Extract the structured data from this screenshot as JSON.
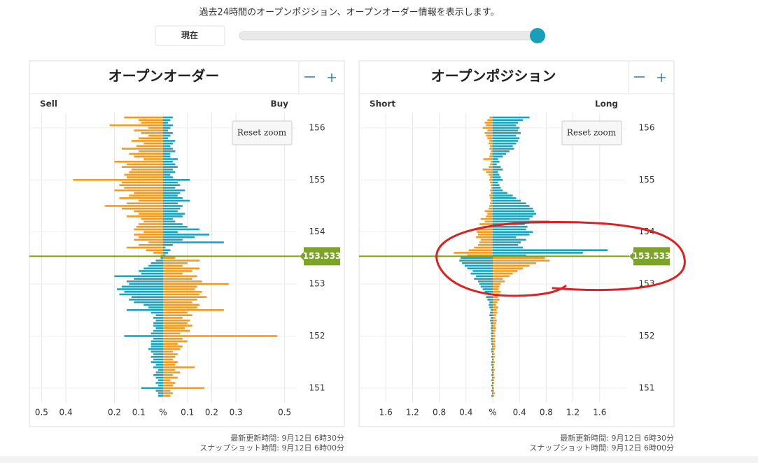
{
  "header": {
    "description": "過去24時間のオープンポジション、オープンオーダー情報を表示します。",
    "slider_button": "現在"
  },
  "chart_data": [
    {
      "type": "bar",
      "orientation": "horizontal",
      "title": "オープンオーダー",
      "grid": true,
      "x": [
        150.85,
        150.9,
        150.95,
        151,
        151.05,
        151.1,
        151.15,
        151.2,
        151.25,
        151.3,
        151.35,
        151.4,
        151.45,
        151.5,
        151.55,
        151.6,
        151.65,
        151.7,
        151.75,
        151.8,
        151.85,
        151.9,
        151.95,
        152,
        152.05,
        152.1,
        152.15,
        152.2,
        152.25,
        152.3,
        152.35,
        152.4,
        152.45,
        152.5,
        152.55,
        152.6,
        152.65,
        152.7,
        152.75,
        152.8,
        152.85,
        152.9,
        152.95,
        153,
        153.05,
        153.1,
        153.15,
        153.2,
        153.25,
        153.3,
        153.35,
        153.4,
        153.45,
        153.5,
        153.55,
        153.6,
        153.65,
        153.7,
        153.75,
        153.8,
        153.85,
        153.9,
        153.95,
        154,
        154.05,
        154.1,
        154.15,
        154.2,
        154.25,
        154.3,
        154.35,
        154.4,
        154.45,
        154.5,
        154.55,
        154.6,
        154.65,
        154.7,
        154.75,
        154.8,
        154.85,
        154.9,
        154.95,
        155,
        155.05,
        155.1,
        155.15,
        155.2,
        155.25,
        155.3,
        155.35,
        155.4,
        155.45,
        155.5,
        155.55,
        155.6,
        155.65,
        155.7,
        155.75,
        155.8,
        155.85,
        155.9,
        155.95,
        156,
        156.05,
        156.1,
        156.15,
        156.2
      ],
      "series": [
        {
          "name": "Sell",
          "color_above": "#f39a1e",
          "color_below": "#1ba3bd",
          "values": [
            -0.02,
            -0.02,
            -0.03,
            -0.09,
            -0.02,
            -0.03,
            -0.02,
            -0.03,
            -0.04,
            -0.03,
            -0.02,
            -0.04,
            -0.03,
            -0.05,
            -0.04,
            -0.05,
            -0.04,
            -0.05,
            -0.06,
            -0.05,
            -0.05,
            -0.05,
            -0.04,
            -0.16,
            -0.05,
            -0.04,
            -0.03,
            -0.04,
            -0.04,
            -0.03,
            -0.04,
            -0.03,
            -0.05,
            -0.15,
            -0.06,
            -0.08,
            -0.12,
            -0.14,
            -0.13,
            -0.18,
            -0.16,
            -0.19,
            -0.17,
            -0.14,
            -0.15,
            -0.12,
            -0.2,
            -0.09,
            -0.1,
            -0.08,
            -0.06,
            -0.05,
            -0.03,
            -0.01,
            -0.01,
            -0.04,
            -0.07,
            -0.15,
            -0.1,
            -0.06,
            -0.12,
            -0.1,
            -0.12,
            -0.08,
            -0.12,
            -0.11,
            -0.1,
            -0.08,
            -0.09,
            -0.15,
            -0.1,
            -0.12,
            -0.17,
            -0.24,
            -0.15,
            -0.1,
            -0.18,
            -0.14,
            -0.12,
            -0.2,
            -0.16,
            -0.18,
            -0.17,
            -0.37,
            -0.15,
            -0.16,
            -0.14,
            -0.13,
            -0.17,
            -0.15,
            -0.2,
            -0.08,
            -0.12,
            -0.14,
            -0.1,
            -0.17,
            -0.11,
            -0.08,
            -0.13,
            -0.1,
            -0.06,
            -0.09,
            -0.12,
            -0.06,
            -0.22,
            -0.09,
            -0.1,
            -0.16
          ]
        },
        {
          "name": "Buy",
          "color_above": "#1ba3bd",
          "color_below": "#f39a1e",
          "values": [
            0.03,
            0.04,
            0.03,
            0.17,
            0.04,
            0.05,
            0.03,
            0.06,
            0.04,
            0.07,
            0.05,
            0.13,
            0.05,
            0.06,
            0.04,
            0.05,
            0.06,
            0.04,
            0.07,
            0.08,
            0.06,
            0.1,
            0.08,
            0.47,
            0.07,
            0.11,
            0.09,
            0.12,
            0.1,
            0.11,
            0.08,
            0.12,
            0.1,
            0.25,
            0.14,
            0.15,
            0.12,
            0.14,
            0.18,
            0.15,
            0.16,
            0.13,
            0.14,
            0.27,
            0.16,
            0.12,
            0.14,
            0.08,
            0.12,
            0.15,
            0.08,
            0.1,
            0.15,
            0.05,
            0.01,
            0.02,
            0.03,
            0.01,
            0.04,
            0.25,
            0.08,
            0.13,
            0.19,
            0.06,
            0.15,
            0.1,
            0.08,
            0.05,
            0.04,
            0.08,
            0.09,
            0.06,
            0.07,
            0.08,
            0.06,
            0.11,
            0.08,
            0.06,
            0.07,
            0.09,
            0.05,
            0.07,
            0.06,
            0.11,
            0.04,
            0.03,
            0.05,
            0.04,
            0.06,
            0.05,
            0.04,
            0.06,
            0.03,
            0.03,
            0.05,
            0.04,
            0.03,
            0.04,
            0.05,
            0.02,
            0.03,
            0.04,
            0.02,
            0.03,
            0.04,
            0.02,
            0.03,
            0.04
          ]
        }
      ],
      "xlim": [
        150.73,
        156.28
      ],
      "xticks": [
        151,
        152,
        153,
        154,
        155,
        156
      ],
      "ylim": [
        -0.55,
        0.55
      ],
      "yticks": [
        {
          "value": -0.5,
          "label": "0.5"
        },
        {
          "value": -0.4,
          "label": "0.4"
        },
        {
          "value": -0.2,
          "label": "0.2"
        },
        {
          "value": -0.1,
          "label": "0.1"
        },
        {
          "value": 0,
          "label": "%"
        },
        0.1,
        0.2,
        0.3,
        0.5
      ],
      "current_price": 153.533,
      "reset_zoom": "Reset zoom",
      "updated": "最新更新時間: 9月12日 6時30分",
      "snapshot": "スナップショット時間: 9月12日 6時00分"
    },
    {
      "type": "bar",
      "orientation": "horizontal",
      "title": "オープンポジション",
      "grid": true,
      "x": [
        150.85,
        150.9,
        150.95,
        151,
        151.05,
        151.1,
        151.15,
        151.2,
        151.25,
        151.3,
        151.35,
        151.4,
        151.45,
        151.5,
        151.55,
        151.6,
        151.65,
        151.7,
        151.75,
        151.8,
        151.85,
        151.9,
        151.95,
        152,
        152.05,
        152.1,
        152.15,
        152.2,
        152.25,
        152.3,
        152.35,
        152.4,
        152.45,
        152.5,
        152.55,
        152.6,
        152.65,
        152.7,
        152.75,
        152.8,
        152.85,
        152.9,
        152.95,
        153,
        153.05,
        153.1,
        153.15,
        153.2,
        153.25,
        153.3,
        153.35,
        153.4,
        153.45,
        153.5,
        153.55,
        153.6,
        153.65,
        153.7,
        153.75,
        153.8,
        153.85,
        153.9,
        153.95,
        154,
        154.05,
        154.1,
        154.15,
        154.2,
        154.25,
        154.3,
        154.35,
        154.4,
        154.45,
        154.5,
        154.55,
        154.6,
        154.65,
        154.7,
        154.75,
        154.8,
        154.85,
        154.9,
        154.95,
        155,
        155.05,
        155.1,
        155.15,
        155.2,
        155.25,
        155.3,
        155.35,
        155.4,
        155.45,
        155.5,
        155.55,
        155.6,
        155.65,
        155.7,
        155.75,
        155.8,
        155.85,
        155.9,
        155.95,
        156,
        156.05,
        156.1,
        156.15,
        156.2
      ],
      "series": [
        {
          "name": "Short",
          "color_above": "#f39a1e",
          "color_below": "#1ba3bd",
          "values": [
            -0.02,
            -0.01,
            -0.02,
            -0.01,
            -0.02,
            -0.01,
            -0.02,
            -0.01,
            -0.02,
            -0.01,
            -0.02,
            -0.01,
            -0.02,
            -0.02,
            -0.01,
            -0.02,
            -0.01,
            -0.02,
            -0.02,
            -0.01,
            -0.02,
            -0.02,
            -0.03,
            -0.02,
            -0.03,
            -0.02,
            -0.03,
            -0.02,
            -0.03,
            -0.04,
            -0.03,
            -0.05,
            -0.04,
            -0.03,
            -0.05,
            -0.06,
            -0.05,
            -0.08,
            -0.1,
            -0.07,
            -0.12,
            -0.15,
            -0.18,
            -0.2,
            -0.22,
            -0.28,
            -0.25,
            -0.33,
            -0.3,
            -0.38,
            -0.42,
            -0.46,
            -0.5,
            -0.48,
            -0.38,
            -0.58,
            -0.36,
            -0.28,
            -0.22,
            -0.2,
            -0.18,
            -0.25,
            -0.22,
            -0.24,
            -0.28,
            -0.15,
            -0.2,
            -0.12,
            -0.18,
            -0.1,
            -0.08,
            -0.12,
            -0.06,
            -0.05,
            -0.04,
            -0.03,
            -0.04,
            -0.05,
            -0.03,
            -0.04,
            -0.02,
            -0.03,
            -0.04,
            -0.05,
            -0.04,
            -0.06,
            -0.1,
            -0.15,
            -0.06,
            -0.04,
            -0.03,
            -0.14,
            -0.05,
            -0.04,
            -0.03,
            -0.05,
            -0.04,
            -0.06,
            -0.05,
            -0.08,
            -0.1,
            -0.12,
            -0.08,
            -0.15,
            -0.1,
            -0.12,
            -0.08,
            -0.05
          ]
        },
        {
          "name": "Long",
          "color_above": "#1ba3bd",
          "color_below": "#f39a1e",
          "values": [
            0.02,
            0.03,
            0.02,
            0.02,
            0.01,
            0.02,
            0.02,
            0.03,
            0.02,
            0.02,
            0.03,
            0.02,
            0.02,
            0.03,
            0.02,
            0.03,
            0.03,
            0.02,
            0.03,
            0.04,
            0.03,
            0.04,
            0.03,
            0.04,
            0.03,
            0.04,
            0.05,
            0.04,
            0.05,
            0.06,
            0.04,
            0.05,
            0.07,
            0.06,
            0.08,
            0.05,
            0.07,
            0.1,
            0.08,
            0.1,
            0.12,
            0.09,
            0.1,
            0.12,
            0.18,
            0.15,
            0.25,
            0.3,
            0.37,
            0.45,
            0.55,
            0.65,
            0.85,
            0.78,
            0.5,
            1.35,
            1.72,
            0.45,
            0.38,
            0.42,
            0.5,
            0.35,
            0.55,
            0.6,
            0.5,
            0.52,
            0.48,
            0.85,
            0.55,
            0.6,
            0.65,
            0.62,
            0.6,
            0.55,
            0.5,
            0.42,
            0.35,
            0.3,
            0.22,
            0.15,
            0.12,
            0.1,
            0.08,
            0.15,
            0.12,
            0.1,
            0.08,
            0.15,
            0.12,
            0.06,
            0.1,
            0.08,
            0.15,
            0.2,
            0.25,
            0.32,
            0.3,
            0.35,
            0.38,
            0.4,
            0.35,
            0.42,
            0.38,
            0.4,
            0.35,
            0.38,
            0.45,
            0.55
          ]
        }
      ],
      "xlim": [
        150.73,
        156.28
      ],
      "xticks": [
        151,
        152,
        153,
        154,
        155,
        156
      ],
      "ylim": [
        -2,
        2
      ],
      "yticks": [
        {
          "value": -1.6,
          "label": "1.6"
        },
        {
          "value": -1.2,
          "label": "1.2"
        },
        {
          "value": -0.8,
          "label": "0.8"
        },
        {
          "value": -0.4,
          "label": "0.4"
        },
        {
          "value": 0,
          "label": "%"
        },
        0.4,
        0.8,
        1.2,
        1.6
      ],
      "current_price": 153.533,
      "reset_zoom": "Reset zoom",
      "updated": "最新更新時間: 9月12日 6時30分",
      "snapshot": "スナップショット時間: 9月12日 6時00分"
    }
  ]
}
